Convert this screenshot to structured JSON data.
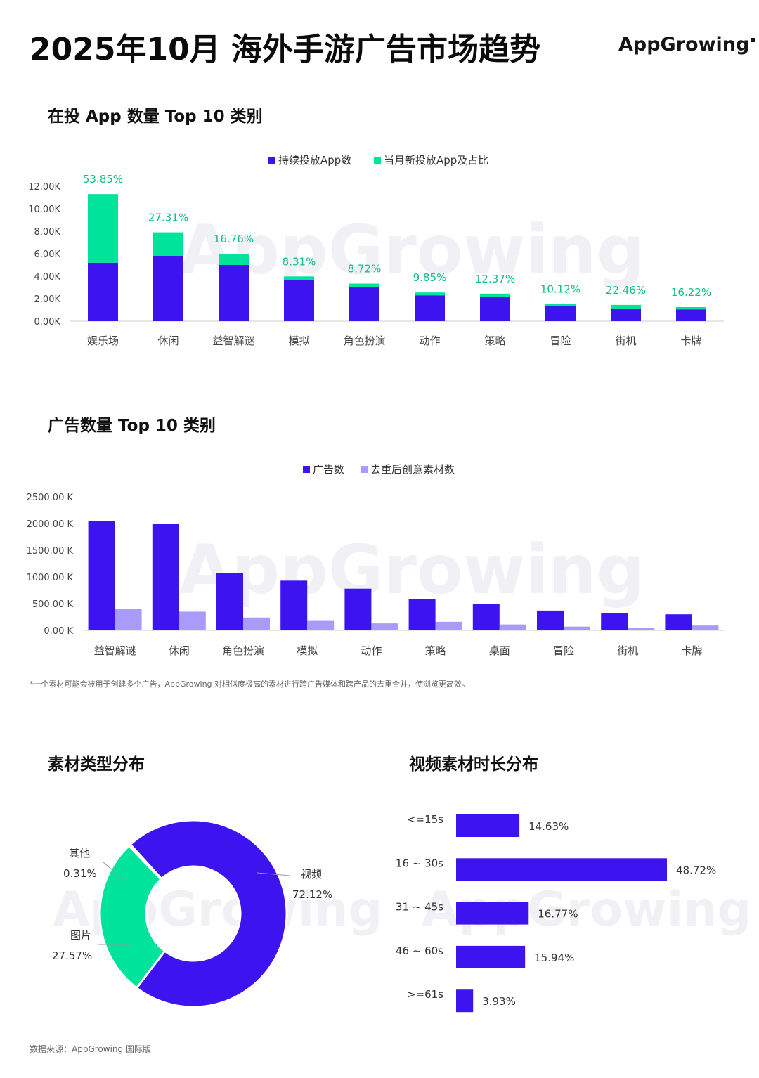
{
  "title": "2025年10月 海外手游广告市场趋势",
  "brand": {
    "logo_text": "AppGrowing",
    "watermark": "AppGrowing"
  },
  "colors": {
    "primary": "#3d13f0",
    "green": "#00e39a",
    "lavender": "#a99bfb"
  },
  "sections": {
    "apps": "在投 App 数量 Top 10 类别",
    "ads": "广告数量 Top 10 类别",
    "material_type": "素材类型分布",
    "video_duration": "视频素材时长分布"
  },
  "footnote": "*一个素材可能会被用于创建多个广告，AppGrowing 对相似度极高的素材进行跨广告媒体和跨产品的去重合并，使浏览更高效。",
  "source": "数据来源：AppGrowing 国际版",
  "chart_data": [
    {
      "type": "bar",
      "stacked": true,
      "title": "在投 App 数量 Top 10 类别",
      "categories": [
        "娱乐场",
        "休闲",
        "益智解谜",
        "模拟",
        "角色扮演",
        "动作",
        "策略",
        "冒险",
        "街机",
        "卡牌"
      ],
      "series": [
        {
          "name": "持续投放App数",
          "color": "#3d13f0",
          "values": [
            5200,
            5750,
            5000,
            3650,
            3050,
            2300,
            2150,
            1370,
            1120,
            1050
          ]
        },
        {
          "name": "当月新投放App及占比",
          "color": "#00e39a",
          "values": [
            6100,
            2150,
            1000,
            330,
            290,
            250,
            300,
            155,
            325,
            200
          ]
        }
      ],
      "data_labels": [
        "53.85%",
        "27.31%",
        "16.76%",
        "8.31%",
        "8.72%",
        "9.85%",
        "12.37%",
        "10.12%",
        "22.46%",
        "16.22%"
      ],
      "yticks": [
        "0.00K",
        "2.00K",
        "4.00K",
        "6.00K",
        "8.00K",
        "10.00K",
        "12.00K"
      ],
      "ylim": [
        0,
        12000
      ],
      "legend": "top-center"
    },
    {
      "type": "bar",
      "title": "广告数量 Top 10 类别",
      "categories": [
        "益智解谜",
        "休闲",
        "角色扮演",
        "模拟",
        "动作",
        "策略",
        "桌面",
        "冒险",
        "街机",
        "卡牌"
      ],
      "series": [
        {
          "name": "广告数",
          "color": "#3d13f0",
          "values": [
            2050,
            2000,
            1070,
            930,
            780,
            590,
            490,
            370,
            320,
            300
          ]
        },
        {
          "name": "去重后创意素材数",
          "color": "#a99bfb",
          "values": [
            400,
            350,
            240,
            190,
            130,
            160,
            110,
            70,
            50,
            90
          ]
        }
      ],
      "yticks": [
        "0.00 K",
        "500.00 K",
        "1000.00 K",
        "1500.00 K",
        "2000.00 K",
        "2500.00 K"
      ],
      "ylim": [
        0,
        2500
      ],
      "legend": "top-center"
    },
    {
      "type": "pie",
      "title": "素材类型分布",
      "slices": [
        {
          "label": "视频",
          "value": 72.12,
          "value_label": "72.12%",
          "color": "#3d13f0"
        },
        {
          "label": "图片",
          "value": 27.57,
          "value_label": "27.57%",
          "color": "#00e39a"
        },
        {
          "label": "其他",
          "value": 0.31,
          "value_label": "0.31%",
          "color": "#3d13f0"
        }
      ]
    },
    {
      "type": "bar",
      "orientation": "horizontal",
      "title": "视频素材时长分布",
      "categories": [
        "<=15s",
        "16 ~ 30s",
        "31 ~ 45s",
        "46 ~ 60s",
        ">=61s"
      ],
      "values": [
        14.63,
        48.72,
        16.77,
        15.94,
        3.93
      ],
      "value_labels": [
        "14.63%",
        "48.72%",
        "16.77%",
        "15.94%",
        "3.93%"
      ]
    }
  ]
}
